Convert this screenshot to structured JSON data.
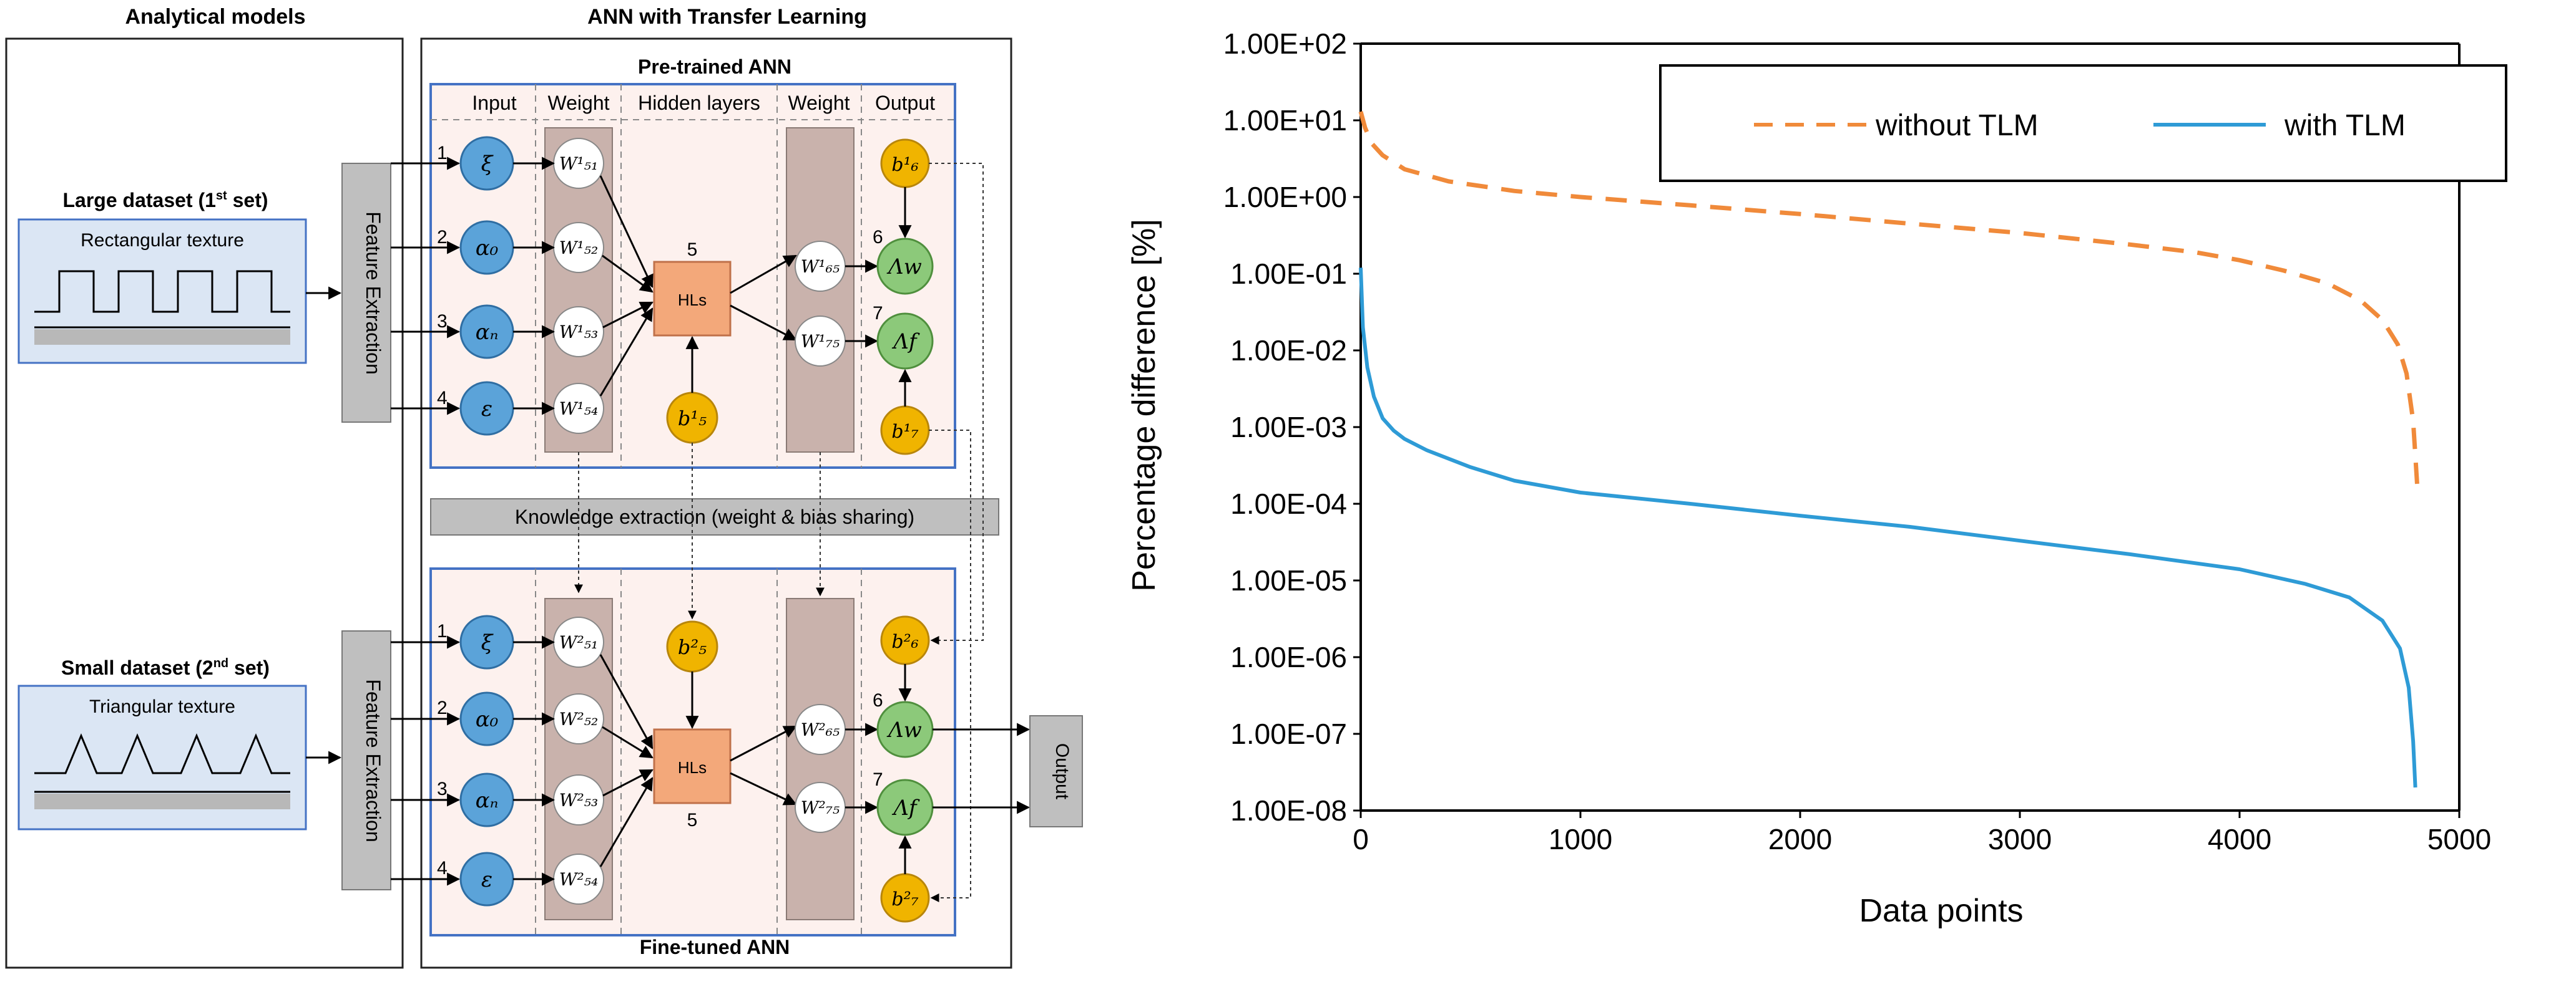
{
  "diagram": {
    "analytical_title": "Analytical models",
    "ann_title": "ANN with Transfer Learning",
    "pretrained_title": "Pre-trained ANN",
    "finetuned_title": "Fine-tuned ANN",
    "headers": {
      "input": "Input",
      "weight": "Weight",
      "hidden": "Hidden layers",
      "weight2": "Weight",
      "output": "Output"
    },
    "large_dataset": {
      "label": "Large dataset (1",
      "sup": "st",
      "suffix": " set)",
      "texture": "Rectangular texture"
    },
    "small_dataset": {
      "label": "Small dataset (2",
      "sup": "nd",
      "suffix": " set)",
      "texture": "Triangular texture"
    },
    "feature_extraction": "Feature Extraction",
    "knowledge": "Knowledge extraction (weight & bias sharing)",
    "output_box": "Output",
    "hls": "HLs",
    "hidden_node_number": "5",
    "inputs": [
      {
        "num": "1",
        "sym": "ξ"
      },
      {
        "num": "2",
        "sym": "α₀"
      },
      {
        "num": "3",
        "sym": "αₙ"
      },
      {
        "num": "4",
        "sym": "ε"
      }
    ],
    "weights_top": [
      "W¹₅₁",
      "W¹₅₂",
      "W¹₅₃",
      "W¹₅₄"
    ],
    "weights_bottom": [
      "W²₅₁",
      "W²₅₂",
      "W²₅₃",
      "W²₅₄"
    ],
    "out_weights_top": [
      "W¹₆₅",
      "W¹₇₅"
    ],
    "out_weights_bottom": [
      "W²₆₅",
      "W²₇₅"
    ],
    "outputs": [
      {
        "num": "6",
        "sym": "Λw"
      },
      {
        "num": "7",
        "sym": "Λf"
      }
    ],
    "bias_top": {
      "b5": "b¹₅",
      "b6": "b¹₆",
      "b7": "b¹₇"
    },
    "bias_bottom": {
      "b5": "b²₅",
      "b6": "b²₆",
      "b7": "b²₇"
    },
    "colors": {
      "input_node": "#5ba3d9",
      "weight_node": "#ffffff",
      "output_node": "#8cc97a",
      "bias_node": "#f0b400",
      "hls_box": "#f3a87a",
      "weight_band": "#c9b2ac",
      "panel_fill": "#fdf1ee",
      "panel_border": "#4472c4",
      "gray_box": "#bfbfbf"
    }
  },
  "chart_data": {
    "type": "line",
    "title": "",
    "xlabel": "Data points",
    "ylabel": "Percentage difference  [%]",
    "yscale": "log",
    "xlim": [
      0,
      5000
    ],
    "ylim": [
      1e-08,
      100
    ],
    "xticks": [
      "0",
      "1000",
      "2000",
      "3000",
      "4000",
      "5000"
    ],
    "yticks": [
      "1.00E-08",
      "1.00E-07",
      "1.00E-06",
      "1.00E-05",
      "1.00E-04",
      "1.00E-03",
      "1.00E-02",
      "1.00E-01",
      "1.00E+00",
      "1.00E+01",
      "1.00E+02"
    ],
    "series": [
      {
        "name": "without TLM",
        "color": "#f08a3a",
        "style": "dashed",
        "x": [
          0,
          20,
          50,
          100,
          200,
          400,
          700,
          1000,
          1500,
          2000,
          2500,
          3000,
          3500,
          3800,
          4000,
          4200,
          4400,
          4550,
          4650,
          4720,
          4760,
          4790,
          4810
        ],
        "y": [
          13,
          8,
          5,
          3.5,
          2.3,
          1.6,
          1.2,
          1.0,
          0.78,
          0.6,
          0.45,
          0.34,
          0.24,
          0.19,
          0.15,
          0.11,
          0.075,
          0.045,
          0.025,
          0.012,
          0.005,
          0.0012,
          0.00015
        ]
      },
      {
        "name": "with TLM",
        "color": "#2e9bd6",
        "style": "solid",
        "x": [
          0,
          10,
          30,
          60,
          100,
          150,
          200,
          300,
          500,
          700,
          1000,
          1500,
          2000,
          2500,
          3000,
          3500,
          4000,
          4300,
          4500,
          4650,
          4730,
          4770,
          4790,
          4800
        ],
        "y": [
          0.12,
          0.02,
          0.006,
          0.0025,
          0.0013,
          0.0009,
          0.0007,
          0.0005,
          0.0003,
          0.0002,
          0.00014,
          0.0001,
          7e-05,
          5e-05,
          3.3e-05,
          2.2e-05,
          1.4e-05,
          9e-06,
          6e-06,
          3e-06,
          1.3e-06,
          4e-07,
          8e-08,
          2e-08
        ]
      }
    ],
    "legend": "top-right"
  }
}
